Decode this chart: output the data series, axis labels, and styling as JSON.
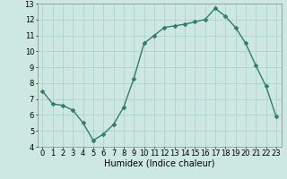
{
  "x": [
    0,
    1,
    2,
    3,
    4,
    5,
    6,
    7,
    8,
    9,
    10,
    11,
    12,
    13,
    14,
    15,
    16,
    17,
    18,
    19,
    20,
    21,
    22,
    23
  ],
  "y": [
    7.5,
    6.7,
    6.6,
    6.3,
    5.5,
    4.4,
    4.8,
    5.4,
    6.5,
    8.3,
    10.5,
    11.0,
    11.5,
    11.6,
    11.7,
    11.85,
    12.0,
    12.7,
    12.2,
    11.5,
    10.5,
    9.1,
    7.8,
    5.9
  ],
  "line_color": "#2e7d6e",
  "marker_color": "#2e7d6e",
  "bg_color": "#cce8e0",
  "grid_color": "#aacfc8",
  "xlabel": "Humidex (Indice chaleur)",
  "ylim": [
    4,
    13
  ],
  "xlim": [
    -0.5,
    23.5
  ],
  "yticks": [
    4,
    5,
    6,
    7,
    8,
    9,
    10,
    11,
    12,
    13
  ],
  "xticks": [
    0,
    1,
    2,
    3,
    4,
    5,
    6,
    7,
    8,
    9,
    10,
    11,
    12,
    13,
    14,
    15,
    16,
    17,
    18,
    19,
    20,
    21,
    22,
    23
  ],
  "xtick_labels": [
    "0",
    "1",
    "2",
    "3",
    "4",
    "5",
    "6",
    "7",
    "8",
    "9",
    "10",
    "11",
    "12",
    "13",
    "14",
    "15",
    "16",
    "17",
    "18",
    "19",
    "20",
    "21",
    "22",
    "23"
  ],
  "xlabel_fontsize": 7,
  "tick_fontsize": 6,
  "line_width": 1.0,
  "marker_size": 2.5
}
